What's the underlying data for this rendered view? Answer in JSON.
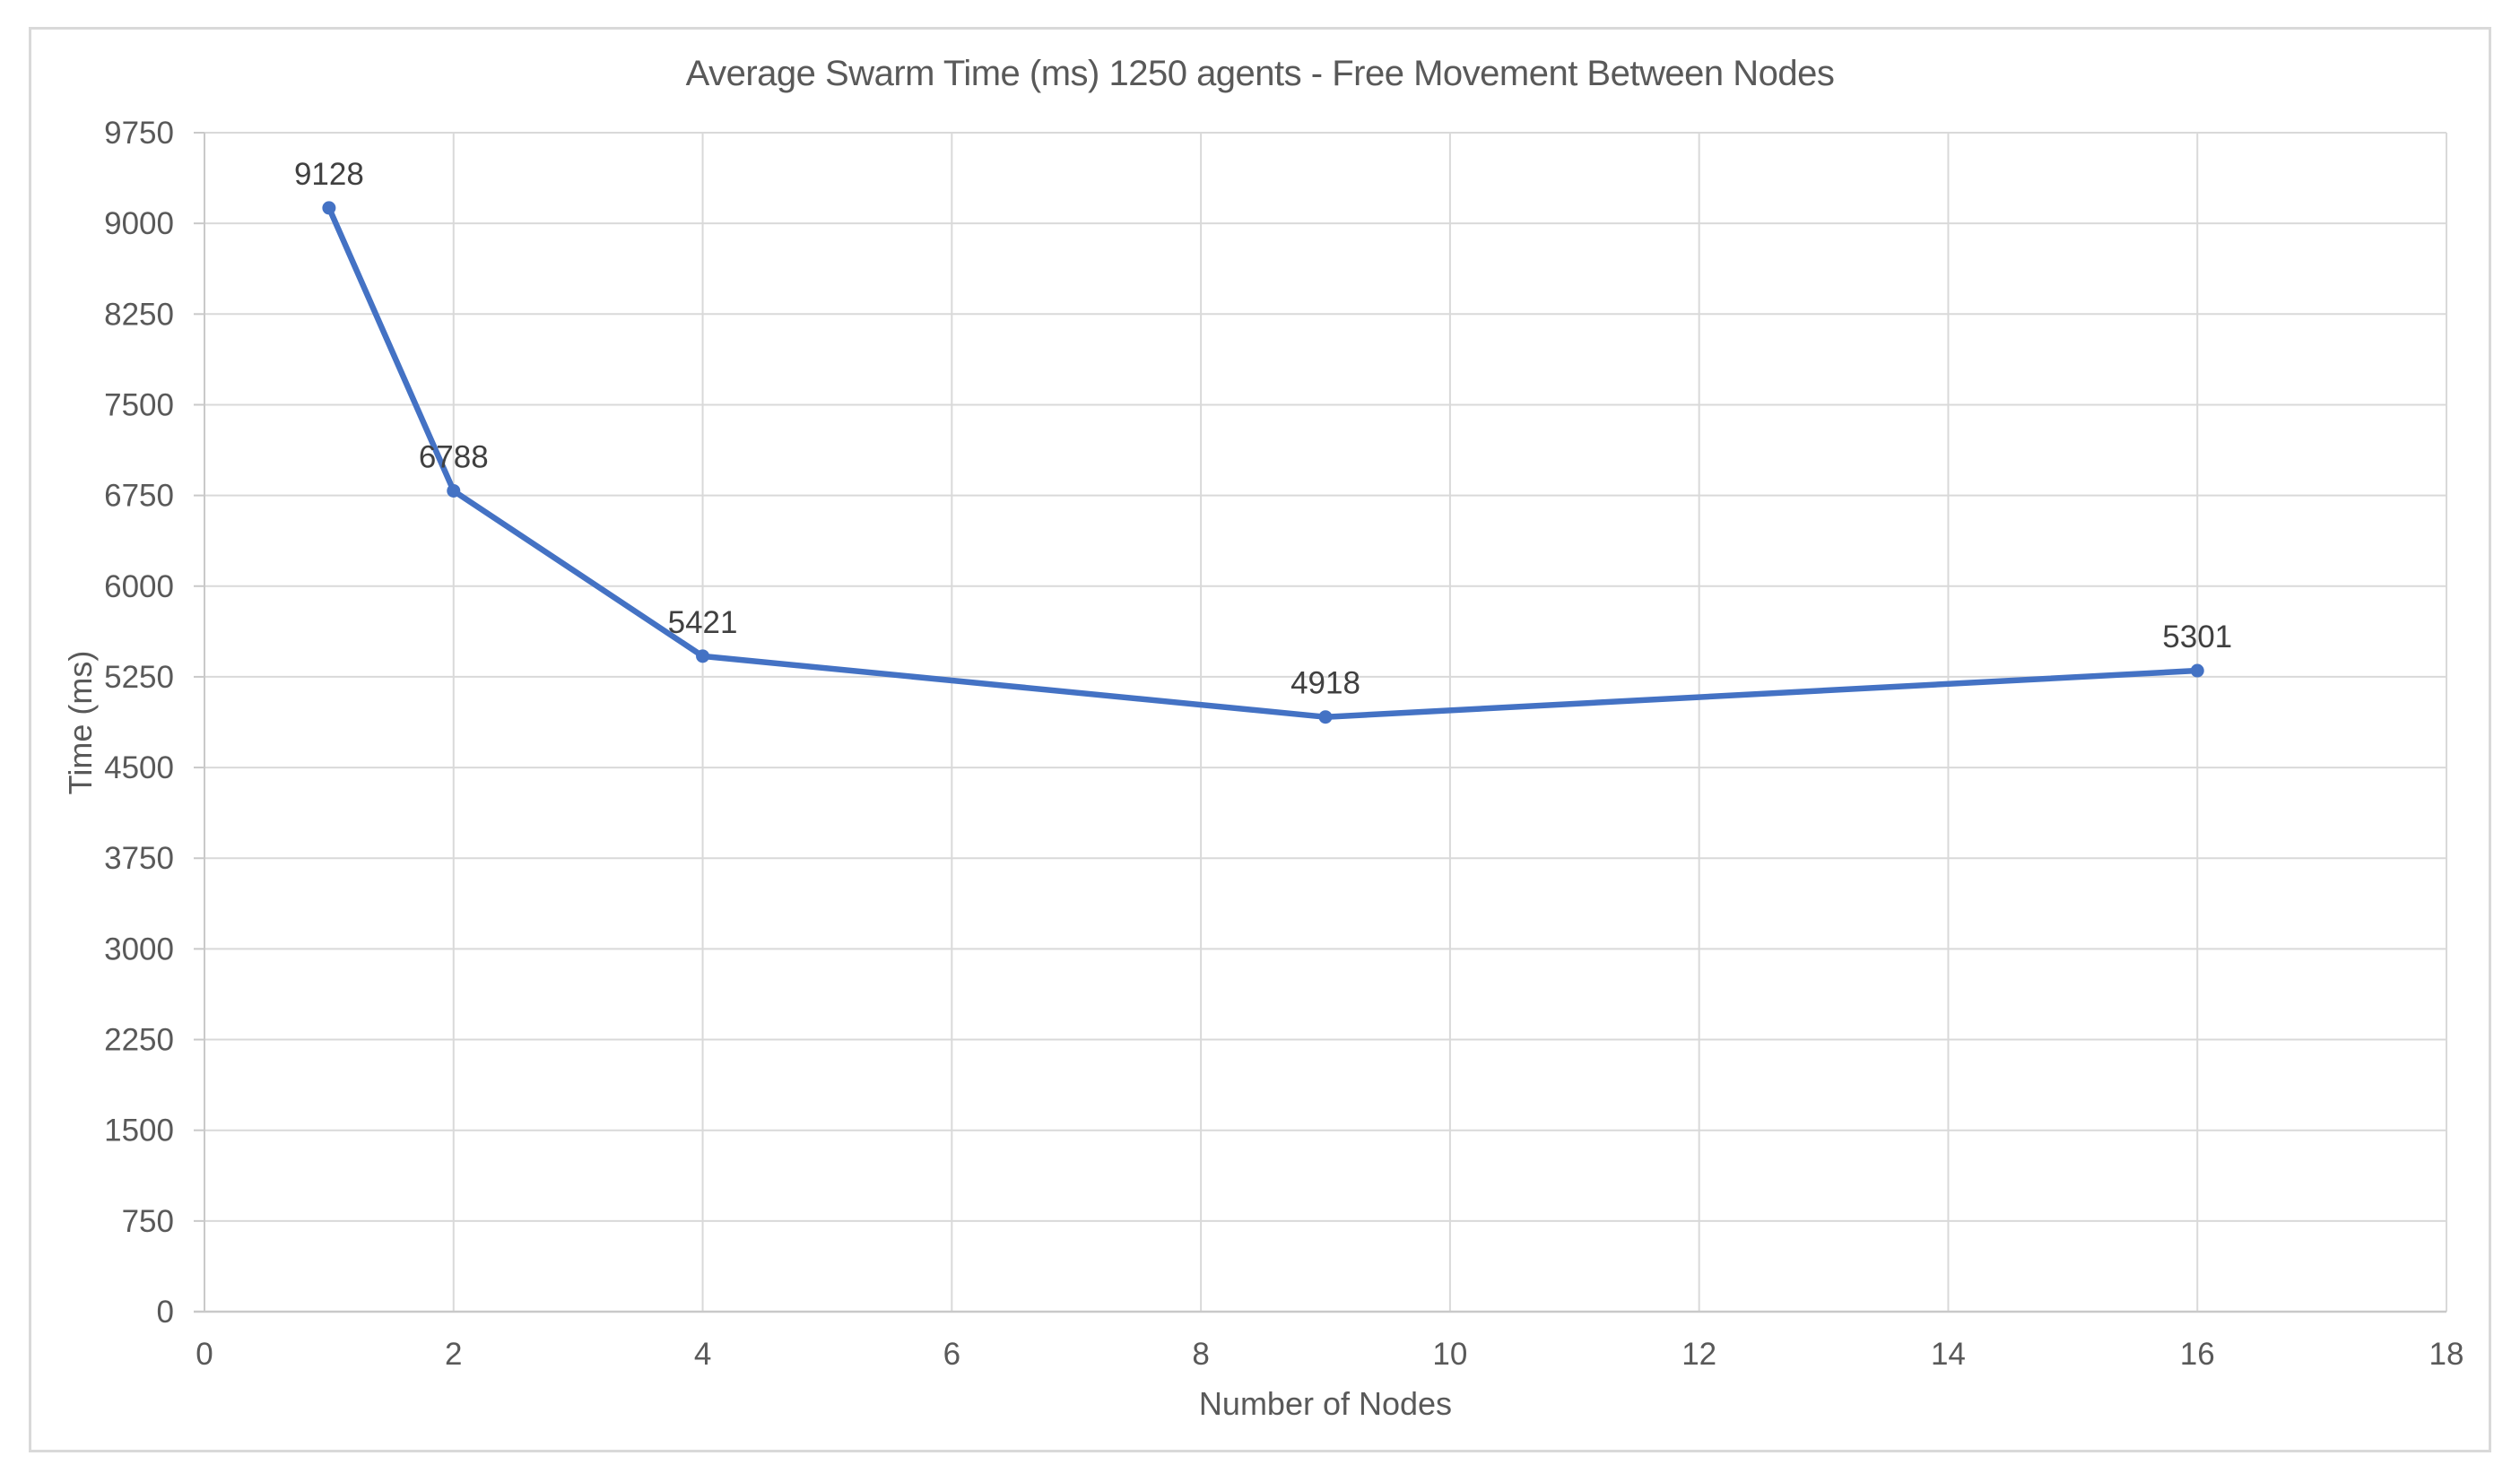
{
  "chart_data": {
    "type": "line",
    "title": "Average Swarm Time (ms) 1250 agents - Free Movement Between Nodes",
    "xlabel": "Number of Nodes",
    "ylabel": "Time (ms)",
    "legend_position": "none",
    "grid": true,
    "x_axis": {
      "min": 0,
      "max": 18,
      "tick_step": 2,
      "ticks": [
        0,
        2,
        4,
        6,
        8,
        10,
        12,
        14,
        16,
        18
      ]
    },
    "y_axis": {
      "min": 0,
      "max": 9750,
      "tick_step": 750,
      "ticks": [
        0,
        750,
        1500,
        2250,
        3000,
        3750,
        4500,
        5250,
        6000,
        6750,
        7500,
        8250,
        9000,
        9750
      ]
    },
    "series": [
      {
        "name": "Average Swarm Time",
        "points": [
          {
            "x": 1,
            "y": 9128,
            "label": "9128"
          },
          {
            "x": 2,
            "y": 6788,
            "label": "6788"
          },
          {
            "x": 4,
            "y": 5421,
            "label": "5421"
          },
          {
            "x": 9,
            "y": 4918,
            "label": "4918"
          },
          {
            "x": 16,
            "y": 5301,
            "label": "5301"
          }
        ]
      }
    ],
    "colors": {
      "line": "#4472C4",
      "marker": "#4472C4",
      "grid": "#D9D9D9",
      "axis": "#C9C9C9",
      "tick_text": "#595959",
      "title_text": "#595959",
      "axis_title_text": "#595959",
      "data_label_text": "#404040",
      "frame_border": "#D9D9D9",
      "background": "#FFFFFF"
    }
  }
}
